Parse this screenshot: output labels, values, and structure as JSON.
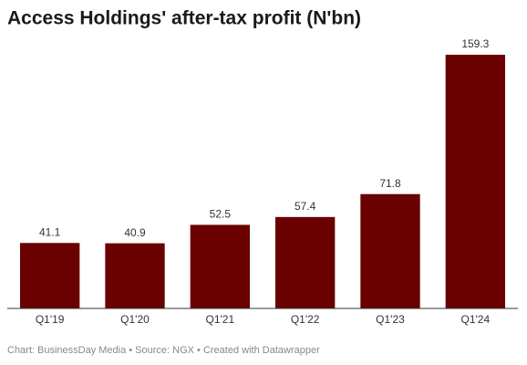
{
  "chart_data": {
    "type": "bar",
    "title": "Access Holdings' after-tax profit (N'bn)",
    "categories": [
      "Q1'19",
      "Q1'20",
      "Q1'21",
      "Q1'22",
      "Q1'23",
      "Q1'24"
    ],
    "values": [
      41.1,
      40.9,
      52.5,
      57.4,
      71.8,
      159.3
    ],
    "color": "#6b0000",
    "footer": "Chart: BusinessDay Media • Source: NGX • Created with Datawrapper"
  }
}
